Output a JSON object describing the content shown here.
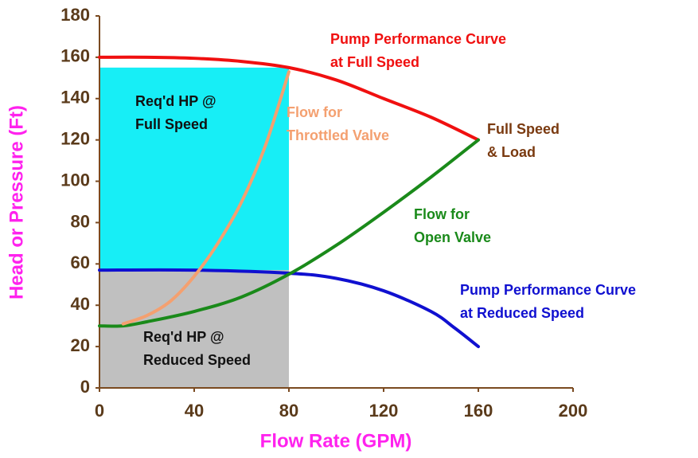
{
  "chart_data": {
    "type": "line",
    "xlabel": "Flow Rate (GPM)",
    "ylabel": "Head or Pressure (Ft)",
    "xlim": [
      0,
      200
    ],
    "xticks": [
      0,
      40,
      80,
      120,
      160,
      200
    ],
    "ylim": [
      0,
      180
    ],
    "yticks": [
      0,
      20,
      40,
      60,
      80,
      100,
      120,
      140,
      160,
      180
    ],
    "areas": [
      {
        "color": "#17eef6",
        "x": [
          0,
          80
        ],
        "y": [
          57,
          155
        ]
      },
      {
        "color": "#c0c0c0",
        "x": [
          0,
          80
        ],
        "y": [
          0,
          57
        ]
      }
    ],
    "series": [
      {
        "name": "Pump Performance Curve at Full Speed",
        "color": "#f01010",
        "x": [
          0,
          20,
          40,
          60,
          80,
          100,
          120,
          140,
          160
        ],
        "values": [
          160,
          160,
          159.5,
          158,
          155,
          149,
          140,
          131,
          120
        ]
      },
      {
        "name": "Pump Performance Curve at Reduced Speed",
        "color": "#1010d0",
        "x": [
          0,
          40,
          80,
          100,
          120,
          140,
          150,
          160
        ],
        "values": [
          57,
          57,
          55.5,
          53,
          47,
          37,
          29,
          20
        ]
      },
      {
        "name": "Flow for Open Valve",
        "color": "#1a8a1a",
        "x": [
          0,
          10,
          20,
          40,
          60,
          80,
          100,
          120,
          140,
          160
        ],
        "values": [
          30,
          30,
          32,
          37,
          44,
          55,
          69,
          85,
          102,
          120
        ]
      },
      {
        "name": "Flow for Throttled Valve",
        "color": "#f4a070",
        "x": [
          10,
          20,
          30,
          40,
          50,
          60,
          70,
          80
        ],
        "values": [
          31,
          35,
          42,
          54,
          70,
          90,
          117,
          153
        ]
      }
    ],
    "annotations": [
      {
        "lines": [
          "Pump Performance Curve",
          "at Full Speed"
        ],
        "color": "#f01010"
      },
      {
        "lines": [
          "Req'd HP @",
          "Full Speed"
        ],
        "color": "#111111"
      },
      {
        "lines": [
          "Flow for",
          "Throttled Valve"
        ],
        "color": "#f4a070"
      },
      {
        "lines": [
          "Full Speed",
          "& Load"
        ],
        "color": "#7a3a10"
      },
      {
        "lines": [
          "Flow for",
          "Open Valve"
        ],
        "color": "#1a8a1a"
      },
      {
        "lines": [
          "Pump Performance Curve",
          "at Reduced Speed"
        ],
        "color": "#1010d0"
      },
      {
        "lines": [
          "Req'd HP @",
          "Reduced Speed"
        ],
        "color": "#111111"
      }
    ]
  }
}
